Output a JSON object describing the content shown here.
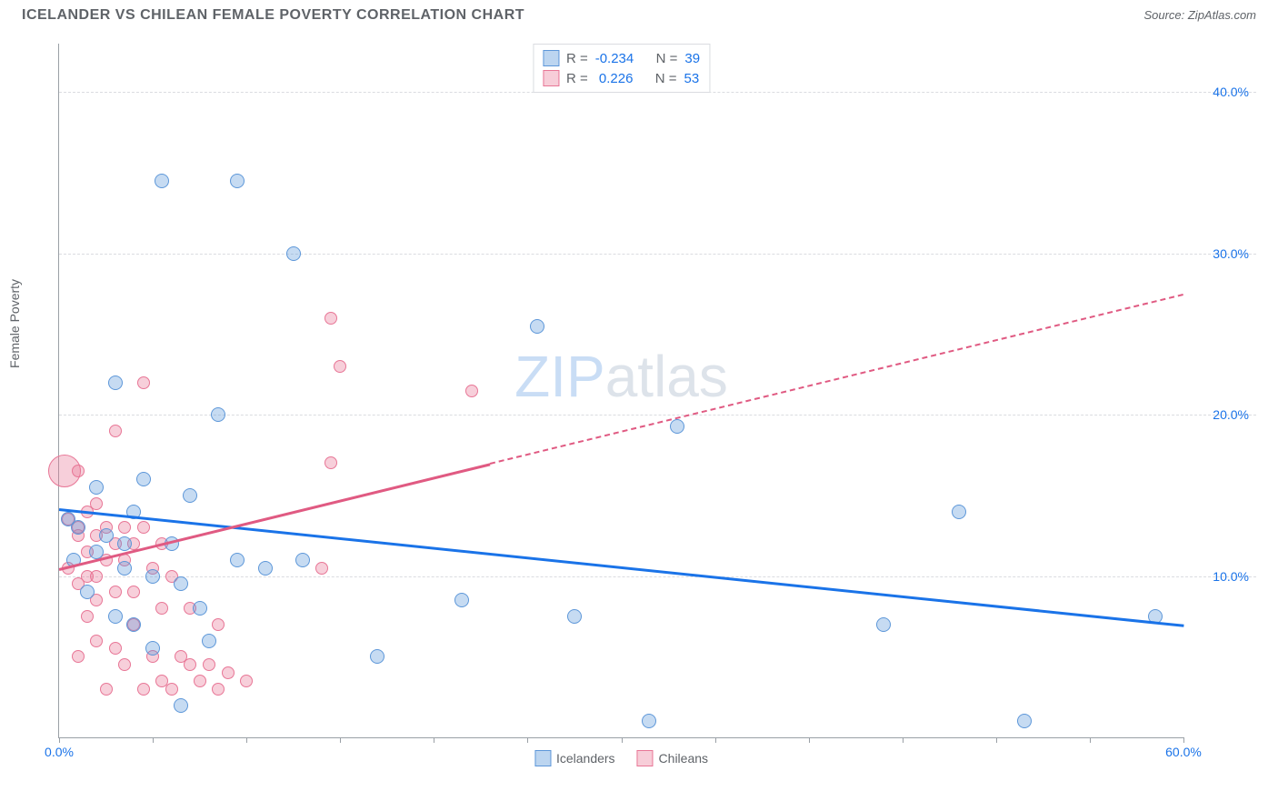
{
  "title": "ICELANDER VS CHILEAN FEMALE POVERTY CORRELATION CHART",
  "source_label": "Source: ZipAtlas.com",
  "ylabel": "Female Poverty",
  "watermark": {
    "part1": "ZIP",
    "part2": "atlas",
    "color1": "#c9ddf5",
    "color2": "#dde3ea"
  },
  "axes": {
    "xlim": [
      0,
      60
    ],
    "ylim": [
      0,
      43
    ],
    "xticks": [
      0,
      5,
      10,
      15,
      20,
      25,
      30,
      35,
      40,
      45,
      50,
      55,
      60
    ],
    "xticklabels": [
      {
        "v": 0,
        "label": "0.0%"
      },
      {
        "v": 60,
        "label": "60.0%"
      }
    ],
    "ygrid": [
      10,
      20,
      30,
      40
    ],
    "yticklabels": [
      {
        "v": 10,
        "label": "10.0%"
      },
      {
        "v": 20,
        "label": "20.0%"
      },
      {
        "v": 30,
        "label": "30.0%"
      },
      {
        "v": 40,
        "label": "40.0%"
      }
    ],
    "tick_color": "#1a73e8",
    "grid_color": "#dadce0"
  },
  "series": {
    "iceland": {
      "label": "Icelanders",
      "fill": "rgba(93,151,217,0.35)",
      "stroke": "#5d97d9",
      "swatch_fill": "#bcd5f0",
      "swatch_border": "#5d97d9",
      "R_label": "R =",
      "R": "-0.234",
      "N_label": "N =",
      "N": "39",
      "radius": 8,
      "points": [
        [
          5.5,
          34.5
        ],
        [
          9.5,
          34.5
        ],
        [
          12.5,
          30.0
        ],
        [
          25.5,
          25.5
        ],
        [
          3.0,
          22.0
        ],
        [
          8.5,
          20.0
        ],
        [
          33.0,
          19.3
        ],
        [
          4.5,
          16.0
        ],
        [
          7.0,
          15.0
        ],
        [
          48.0,
          14.0
        ],
        [
          0.5,
          13.5
        ],
        [
          2.5,
          12.5
        ],
        [
          3.5,
          12.0
        ],
        [
          6.0,
          12.0
        ],
        [
          9.5,
          11.0
        ],
        [
          13.0,
          11.0
        ],
        [
          21.5,
          8.5
        ],
        [
          5.0,
          10.0
        ],
        [
          6.5,
          9.5
        ],
        [
          7.5,
          8.0
        ],
        [
          3.0,
          7.5
        ],
        [
          4.0,
          7.0
        ],
        [
          27.5,
          7.5
        ],
        [
          44.0,
          7.0
        ],
        [
          58.5,
          7.5
        ],
        [
          17.0,
          5.0
        ],
        [
          6.5,
          2.0
        ],
        [
          31.5,
          1.0
        ],
        [
          51.5,
          1.0
        ],
        [
          1.0,
          13.0
        ],
        [
          2.0,
          11.5
        ],
        [
          3.5,
          10.5
        ],
        [
          5.0,
          5.5
        ],
        [
          8.0,
          6.0
        ],
        [
          11.0,
          10.5
        ],
        [
          2.0,
          15.5
        ],
        [
          1.5,
          9.0
        ],
        [
          4.0,
          14.0
        ],
        [
          0.8,
          11.0
        ]
      ],
      "trend": {
        "x1": 0,
        "y1": 14.2,
        "x2": 60,
        "y2": 7.0,
        "solid_until": 60,
        "color": "#1a73e8"
      }
    },
    "chile": {
      "label": "Chileans",
      "fill": "rgba(232,118,150,0.35)",
      "stroke": "#e87696",
      "swatch_fill": "#f7cdd8",
      "swatch_border": "#e87696",
      "R_label": "R =",
      "R": "0.226",
      "N_label": "N =",
      "N": "53",
      "radius": 7,
      "points": [
        [
          14.5,
          26.0
        ],
        [
          15.0,
          23.0
        ],
        [
          4.5,
          22.0
        ],
        [
          22.0,
          21.5
        ],
        [
          3.0,
          19.0
        ],
        [
          1.0,
          16.5
        ],
        [
          14.5,
          17.0
        ],
        [
          1.5,
          14.0
        ],
        [
          2.0,
          14.5
        ],
        [
          0.5,
          13.5
        ],
        [
          1.0,
          13.0
        ],
        [
          2.5,
          13.0
        ],
        [
          3.5,
          13.0
        ],
        [
          4.5,
          13.0
        ],
        [
          1.0,
          12.5
        ],
        [
          2.0,
          12.5
        ],
        [
          3.0,
          12.0
        ],
        [
          4.0,
          12.0
        ],
        [
          5.5,
          12.0
        ],
        [
          1.5,
          11.5
        ],
        [
          2.5,
          11.0
        ],
        [
          3.5,
          11.0
        ],
        [
          0.5,
          10.5
        ],
        [
          1.5,
          10.0
        ],
        [
          2.0,
          10.0
        ],
        [
          5.0,
          10.5
        ],
        [
          6.0,
          10.0
        ],
        [
          14.0,
          10.5
        ],
        [
          1.0,
          9.5
        ],
        [
          3.0,
          9.0
        ],
        [
          4.0,
          9.0
        ],
        [
          2.0,
          8.5
        ],
        [
          5.5,
          8.0
        ],
        [
          7.0,
          8.0
        ],
        [
          1.5,
          7.5
        ],
        [
          4.0,
          7.0
        ],
        [
          8.5,
          7.0
        ],
        [
          2.0,
          6.0
        ],
        [
          3.0,
          5.5
        ],
        [
          1.0,
          5.0
        ],
        [
          5.0,
          5.0
        ],
        [
          6.5,
          5.0
        ],
        [
          3.5,
          4.5
        ],
        [
          7.0,
          4.5
        ],
        [
          8.0,
          4.5
        ],
        [
          9.0,
          4.0
        ],
        [
          5.5,
          3.5
        ],
        [
          7.5,
          3.5
        ],
        [
          2.5,
          3.0
        ],
        [
          4.5,
          3.0
        ],
        [
          6.0,
          3.0
        ],
        [
          8.5,
          3.0
        ],
        [
          10.0,
          3.5
        ]
      ],
      "big_point": {
        "x": 0.3,
        "y": 16.5,
        "r": 18
      },
      "trend": {
        "x1": 0,
        "y1": 10.5,
        "x2": 60,
        "y2": 27.5,
        "solid_until": 23,
        "color": "#e05a82"
      }
    }
  }
}
